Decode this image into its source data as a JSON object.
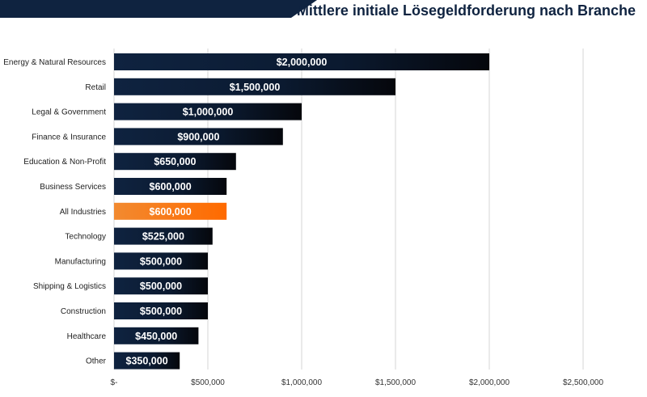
{
  "title": "Mittlere initiale Lösegeldforderung nach Branche",
  "colors": {
    "bar_dark": "#0f2340",
    "bar_black": "#05070c",
    "highlight_start": "#f28a30",
    "highlight_end": "#ff6a00",
    "grid": "#d6d6d6",
    "banner": "#0f2340"
  },
  "chart_data": {
    "type": "bar",
    "orientation": "horizontal",
    "title": "Mittlere initiale Lösegeldforderung nach Branche",
    "xlabel": "",
    "ylabel": "",
    "xlim": [
      0,
      2500000
    ],
    "grid": true,
    "legend": "none",
    "categories": [
      "Energy & Natural Resources",
      "Retail",
      "Legal & Government",
      "Finance & Insurance",
      "Education & Non-Profit",
      "Business Services",
      "All Industries",
      "Technology",
      "Manufacturing",
      "Shipping & Logistics",
      "Construction",
      "Healthcare",
      "Other"
    ],
    "values": [
      2000000,
      1500000,
      1000000,
      900000,
      650000,
      600000,
      600000,
      525000,
      500000,
      500000,
      500000,
      450000,
      350000
    ],
    "value_labels": [
      "$2,000,000",
      "$1,500,000",
      "$1,000,000",
      "$900,000",
      "$650,000",
      "$600,000",
      "$600,000",
      "$525,000",
      "$500,000",
      "$500,000",
      "$500,000",
      "$450,000",
      "$350,000"
    ],
    "highlight": "All Industries",
    "xticks": [
      0,
      500000,
      1000000,
      1500000,
      2000000,
      2500000
    ],
    "xtick_labels": [
      "$-",
      "$500,000",
      "$1,000,000",
      "$1,500,000",
      "$2,000,000",
      "$2,500,000"
    ]
  }
}
